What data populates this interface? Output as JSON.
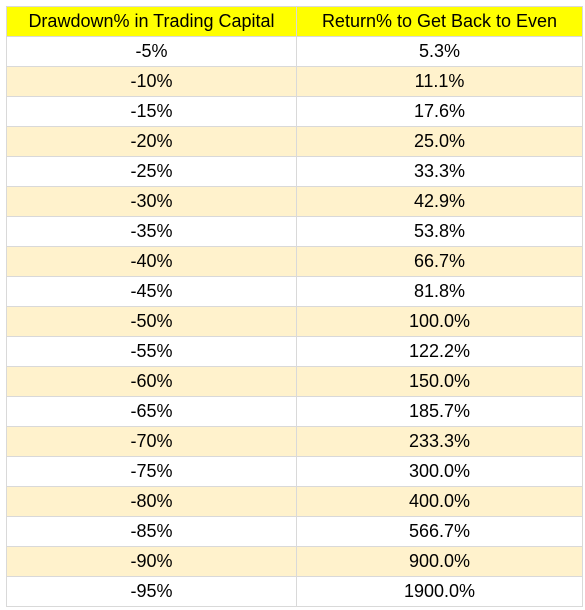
{
  "table": {
    "headers": [
      "Drawdown% in Trading Capital",
      "Return% to Get Back to Even"
    ],
    "rows": [
      [
        "-5%",
        "5.3%"
      ],
      [
        "-10%",
        "11.1%"
      ],
      [
        "-15%",
        "17.6%"
      ],
      [
        "-20%",
        "25.0%"
      ],
      [
        "-25%",
        "33.3%"
      ],
      [
        "-30%",
        "42.9%"
      ],
      [
        "-35%",
        "53.8%"
      ],
      [
        "-40%",
        "66.7%"
      ],
      [
        "-45%",
        "81.8%"
      ],
      [
        "-50%",
        "100.0%"
      ],
      [
        "-55%",
        "122.2%"
      ],
      [
        "-60%",
        "150.0%"
      ],
      [
        "-65%",
        "185.7%"
      ],
      [
        "-70%",
        "233.3%"
      ],
      [
        "-75%",
        "300.0%"
      ],
      [
        "-80%",
        "400.0%"
      ],
      [
        "-85%",
        "566.7%"
      ],
      [
        "-90%",
        "900.0%"
      ],
      [
        "-95%",
        "1900.0%"
      ]
    ]
  },
  "colors": {
    "header_fill": "#ffff00",
    "band_fill": "#fff2cc",
    "plain_fill": "#ffffff",
    "gridline": "#d9d9d9"
  }
}
